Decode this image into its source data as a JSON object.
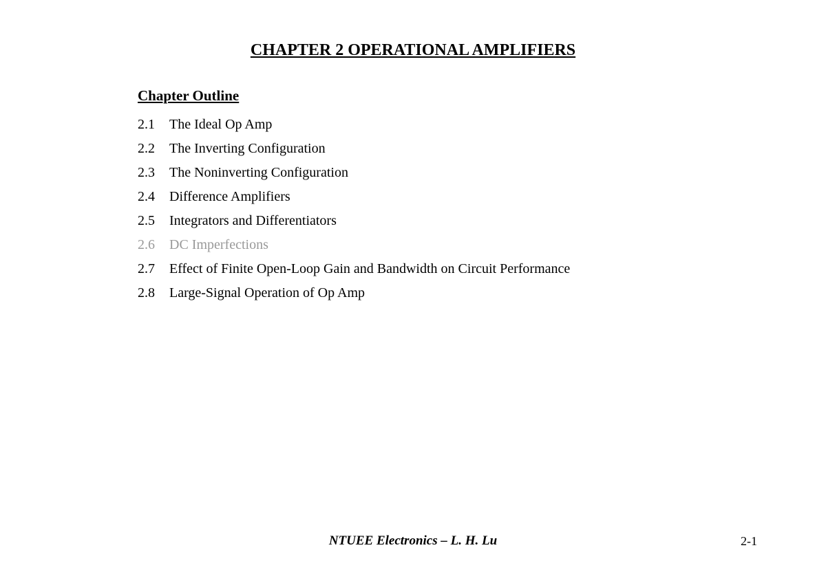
{
  "title": "CHAPTER 2 OPERATIONAL AMPLIFIERS",
  "outline_heading": "Chapter Outline",
  "outline_items": [
    {
      "number": "2.1",
      "text": "The Ideal Op Amp",
      "dimmed": false
    },
    {
      "number": "2.2",
      "text": "The Inverting Configuration",
      "dimmed": false
    },
    {
      "number": "2.3",
      "text": "The Noninverting Configuration",
      "dimmed": false
    },
    {
      "number": "2.4",
      "text": "Difference Amplifiers",
      "dimmed": false
    },
    {
      "number": "2.5",
      "text": "Integrators and Differentiators",
      "dimmed": false
    },
    {
      "number": "2.6",
      "text": "DC Imperfections",
      "dimmed": true
    },
    {
      "number": "2.7",
      "text": "Effect of Finite Open-Loop Gain and Bandwidth on Circuit Performance",
      "dimmed": false
    },
    {
      "number": "2.8",
      "text": "Large-Signal Operation of Op Amp",
      "dimmed": false
    }
  ],
  "footer_text": "NTUEE   Electronics   –   L. H. Lu",
  "page_number": "2-1",
  "colors": {
    "text": "#000000",
    "dimmed": "#999999",
    "background": "#ffffff"
  },
  "typography": {
    "title_fontsize": 24,
    "heading_fontsize": 21,
    "body_fontsize": 20,
    "footer_fontsize": 19,
    "font_family": "Georgia, serif"
  }
}
